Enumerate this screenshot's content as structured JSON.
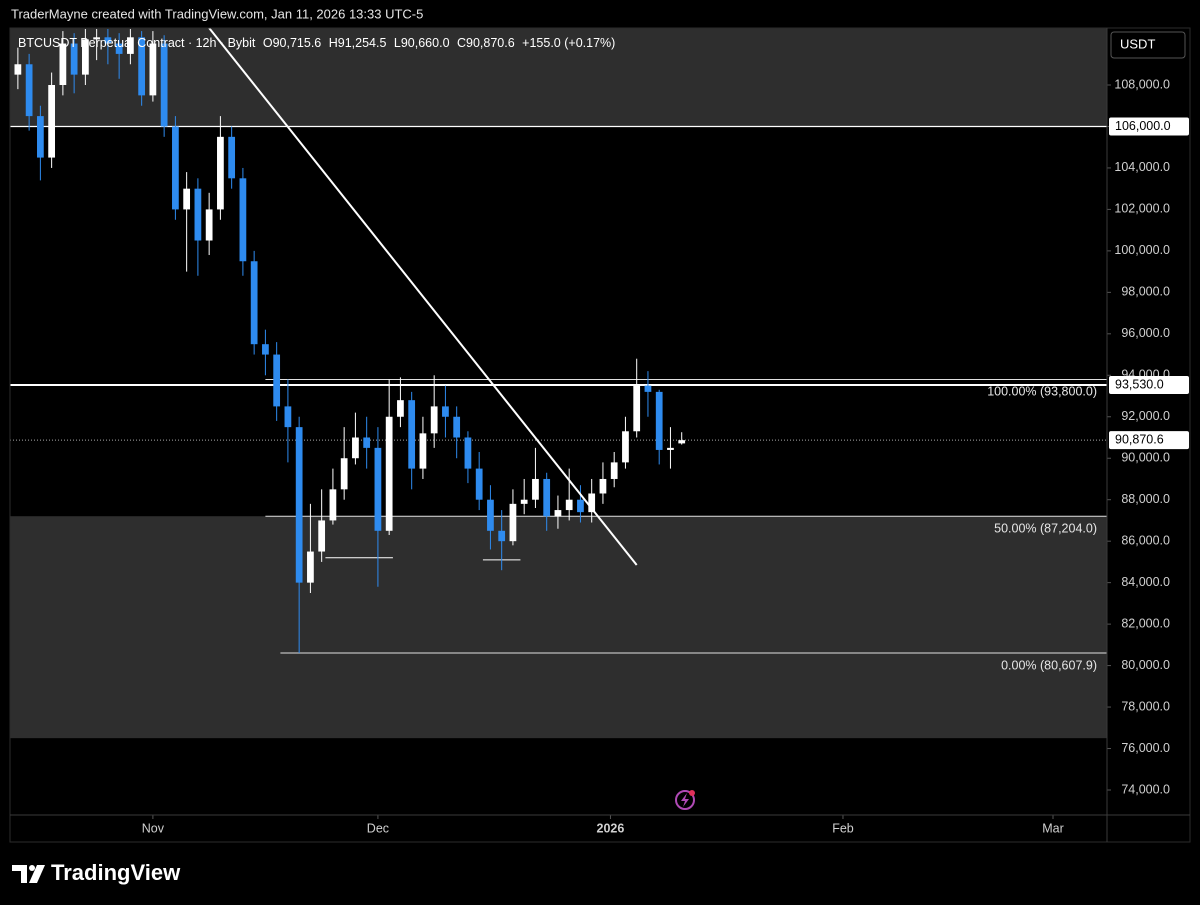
{
  "header": {
    "text": "TraderMayne created with TradingView.com, Jan 11, 2026 13:33 UTC-5"
  },
  "footer_brand": "TradingView",
  "currency": "USDT",
  "chart_data": {
    "type": "candlestick",
    "legend": {
      "symbol": "BTCUSDT Perpetual Contract · 12h · Bybit",
      "open": "O90,715.6",
      "high": "H91,254.5",
      "low": "L90,660.0",
      "close": "C90,870.6",
      "change": "+155.0 (+0.17%)"
    },
    "x": [
      -36,
      -33,
      -30,
      -27,
      -24,
      -21,
      -18,
      -15,
      -12,
      -9,
      -6,
      -3,
      0,
      3,
      6,
      9,
      12,
      15,
      18,
      21,
      24,
      27,
      30,
      33,
      36,
      39,
      42,
      45,
      48,
      51,
      54,
      57,
      60,
      63,
      66,
      69,
      72,
      75,
      78,
      81,
      84,
      87,
      90,
      93,
      96,
      99,
      102,
      105,
      108,
      111,
      114,
      117,
      120,
      123,
      126,
      129,
      132,
      135,
      138,
      141
    ],
    "open": [
      108500,
      109000,
      106500,
      104500,
      108000,
      110000,
      108500,
      110200,
      110300,
      110000,
      109500,
      110300,
      107500,
      110000,
      106000,
      102000,
      103000,
      100500,
      102000,
      105500,
      103500,
      99500,
      95500,
      95000,
      92500,
      91500,
      84000,
      85500,
      87000,
      88500,
      90000,
      91000,
      90500,
      86500,
      92000,
      92800,
      89500,
      91200,
      92500,
      92000,
      91000,
      89500,
      88000,
      86500,
      86000,
      87800,
      88000,
      89000,
      87200,
      87500,
      88000,
      87400,
      88300,
      89000,
      89800,
      91300,
      93500,
      93200,
      90400,
      90715.6
    ],
    "high": [
      109800,
      109500,
      107000,
      108600,
      110600,
      110500,
      110700,
      110700,
      110700,
      110500,
      110700,
      110600,
      110600,
      110400,
      106500,
      103800,
      103500,
      102800,
      106500,
      106000,
      104000,
      100000,
      96200,
      95600,
      93800,
      92000,
      87800,
      88500,
      89500,
      91500,
      92200,
      92000,
      91500,
      93800,
      93900,
      93200,
      92000,
      94000,
      93500,
      92500,
      91300,
      90300,
      88700,
      87500,
      88500,
      89000,
      90500,
      89300,
      88200,
      89500,
      88700,
      89000,
      89800,
      90300,
      92000,
      94800,
      94200,
      93300,
      91500,
      91254.5
    ],
    "low": [
      107800,
      105800,
      103400,
      104000,
      107500,
      107600,
      108000,
      109200,
      109000,
      108300,
      109000,
      107000,
      107200,
      105500,
      101500,
      99000,
      98800,
      99800,
      101500,
      103000,
      98800,
      95000,
      94000,
      91800,
      89800,
      80607.9,
      83500,
      85000,
      86800,
      88000,
      89700,
      89500,
      83800,
      86300,
      91500,
      88500,
      89000,
      90500,
      91000,
      90000,
      88800,
      87500,
      85600,
      84600,
      85800,
      87300,
      87600,
      86500,
      86600,
      87000,
      86900,
      86900,
      87800,
      88600,
      89500,
      91000,
      92000,
      89700,
      89500,
      90660
    ],
    "close": [
      109000,
      106500,
      104500,
      108000,
      110000,
      108500,
      110200,
      110300,
      110000,
      109500,
      110300,
      107500,
      110000,
      106000,
      102000,
      103000,
      100500,
      102000,
      105500,
      103500,
      99500,
      95500,
      95000,
      92500,
      91500,
      84000,
      85500,
      87000,
      88500,
      90000,
      91000,
      90500,
      86500,
      92000,
      92800,
      89500,
      91200,
      92500,
      92000,
      91000,
      89500,
      88000,
      86500,
      86000,
      87800,
      88000,
      89000,
      87200,
      87500,
      88000,
      87400,
      88300,
      89000,
      89800,
      91300,
      93500,
      93200,
      90400,
      90500,
      90870.6
    ],
    "up_color": "#ffffff",
    "down_color": "#2e8bef",
    "xlim": [
      -38.1,
      254.4
    ],
    "xticks": [
      {
        "value": 0,
        "label": "Nov"
      },
      {
        "value": 60,
        "label": "Dec"
      },
      {
        "value": 122,
        "label": "2026"
      },
      {
        "value": 184,
        "label": "Feb"
      },
      {
        "value": 240,
        "label": "Mar"
      }
    ],
    "ylim": [
      72794,
      110749
    ],
    "yticks": [
      {
        "value": 74000,
        "label": "74,000.0"
      },
      {
        "value": 76000,
        "label": "76,000.0"
      },
      {
        "value": 78000,
        "label": "78,000.0"
      },
      {
        "value": 80000,
        "label": "80,000.0"
      },
      {
        "value": 82000,
        "label": "82,000.0"
      },
      {
        "value": 84000,
        "label": "84,000.0"
      },
      {
        "value": 86000,
        "label": "86,000.0"
      },
      {
        "value": 88000,
        "label": "88,000.0"
      },
      {
        "value": 90000,
        "label": "90,000.0"
      },
      {
        "value": 92000,
        "label": "92,000.0"
      },
      {
        "value": 94000,
        "label": "94,000.0"
      },
      {
        "value": 96000,
        "label": "96,000.0"
      },
      {
        "value": 98000,
        "label": "98,000.0"
      },
      {
        "value": 100000,
        "label": "100,000.0"
      },
      {
        "value": 102000,
        "label": "102,000.0"
      },
      {
        "value": 104000,
        "label": "104,000.0"
      },
      {
        "value": 106000,
        "label": "106,000.0"
      },
      {
        "value": 108000,
        "label": "108,000.0"
      }
    ],
    "zones": [
      {
        "from": 106000,
        "to": 110749
      },
      {
        "from": 76500,
        "to": 87204
      }
    ],
    "horizontal_lines": [
      {
        "value": 106000,
        "label": "106,000.0"
      },
      {
        "value": 93530,
        "label": "93,530.0"
      }
    ],
    "fib_levels": [
      {
        "value": 93800,
        "label": "100.00% (93,800.0)",
        "from": 30
      },
      {
        "value": 87204,
        "label": "50.00% (87,204.0)",
        "from": 30
      },
      {
        "value": 80607.9,
        "label": "0.00% (80,607.9)",
        "from": 34
      }
    ],
    "segments": [
      {
        "x": [
          46,
          64
        ],
        "y": [
          85200,
          85200
        ]
      },
      {
        "x": [
          88,
          98
        ],
        "y": [
          85100,
          85100
        ]
      }
    ],
    "trendline": {
      "x": [
        15,
        129
      ],
      "y": [
        110749,
        84850
      ]
    },
    "last_price": {
      "value": 90870.6,
      "label": "90,870.6"
    }
  }
}
